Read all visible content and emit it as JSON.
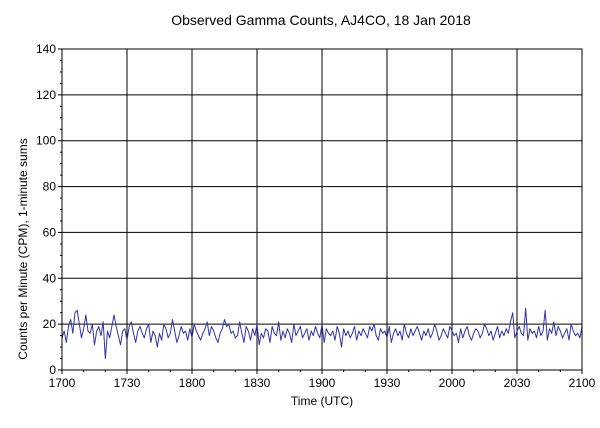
{
  "chart_data": {
    "type": "line",
    "title": "Observed Gamma Counts, AJ4CO, 18 Jan 2018",
    "xlabel": "Time (UTC)",
    "ylabel": "Counts per Minute (CPM), 1-minute sums",
    "x_tick_labels": [
      "1700",
      "1730",
      "1800",
      "1830",
      "1900",
      "1930",
      "2000",
      "2030",
      "2100"
    ],
    "y_ticks": [
      0,
      20,
      40,
      60,
      80,
      100,
      120,
      140
    ],
    "xlim_minutes": [
      0,
      240
    ],
    "ylim": [
      0,
      140
    ],
    "grid": true,
    "series_color": "#3333aa",
    "series": [
      {
        "x_start": "1700",
        "x_step_minutes": 1,
        "values": [
          14,
          17,
          12,
          19,
          22,
          16,
          25,
          26,
          20,
          14,
          18,
          24,
          17,
          16,
          20,
          11,
          17,
          19,
          15,
          21,
          5,
          17,
          14,
          19,
          24,
          19,
          15,
          11,
          17,
          18,
          13,
          19,
          21,
          16,
          12,
          17,
          19,
          16,
          14,
          18,
          20,
          12,
          17,
          15,
          10,
          16,
          13,
          20,
          18,
          14,
          16,
          22,
          17,
          12,
          15,
          19,
          16,
          17,
          13,
          18,
          14,
          20,
          17,
          15,
          13,
          16,
          18,
          21,
          15,
          19,
          17,
          14,
          12,
          16,
          18,
          22,
          19,
          20,
          16,
          17,
          14,
          15,
          21,
          16,
          12,
          19,
          17,
          13,
          18,
          15,
          20,
          11,
          16,
          14,
          18,
          17,
          12,
          19,
          16,
          15,
          21,
          13,
          17,
          14,
          18,
          16,
          12,
          20,
          15,
          17,
          19,
          14,
          16,
          18,
          13,
          17,
          15,
          19,
          16,
          14,
          20,
          12,
          18,
          16,
          15,
          17,
          13,
          19,
          16,
          10,
          18,
          15,
          17,
          14,
          16,
          19,
          13,
          17,
          15,
          18,
          16,
          14,
          19,
          17,
          20,
          15,
          13,
          18,
          16,
          17,
          14,
          19,
          12,
          16,
          18,
          15,
          17,
          13,
          20,
          16,
          14,
          18,
          15,
          17,
          19,
          16,
          13,
          17,
          15,
          18,
          14,
          16,
          20,
          17,
          13,
          15,
          18,
          16,
          14,
          19,
          17,
          15,
          16,
          12,
          18,
          14,
          17,
          19,
          15,
          13,
          16,
          18,
          17,
          14,
          16,
          20,
          18,
          15,
          17,
          13,
          16,
          19,
          14,
          17,
          15,
          18,
          16,
          21,
          25,
          14,
          17,
          19,
          16,
          15,
          27,
          13,
          18,
          16,
          17,
          14,
          19,
          15,
          17,
          26,
          13,
          18,
          16,
          21,
          15,
          19,
          17,
          14,
          16,
          18,
          13,
          20,
          17,
          15,
          16,
          14,
          19,
          18,
          21,
          17,
          13,
          16,
          18,
          15,
          17,
          14,
          12
        ]
      }
    ]
  }
}
